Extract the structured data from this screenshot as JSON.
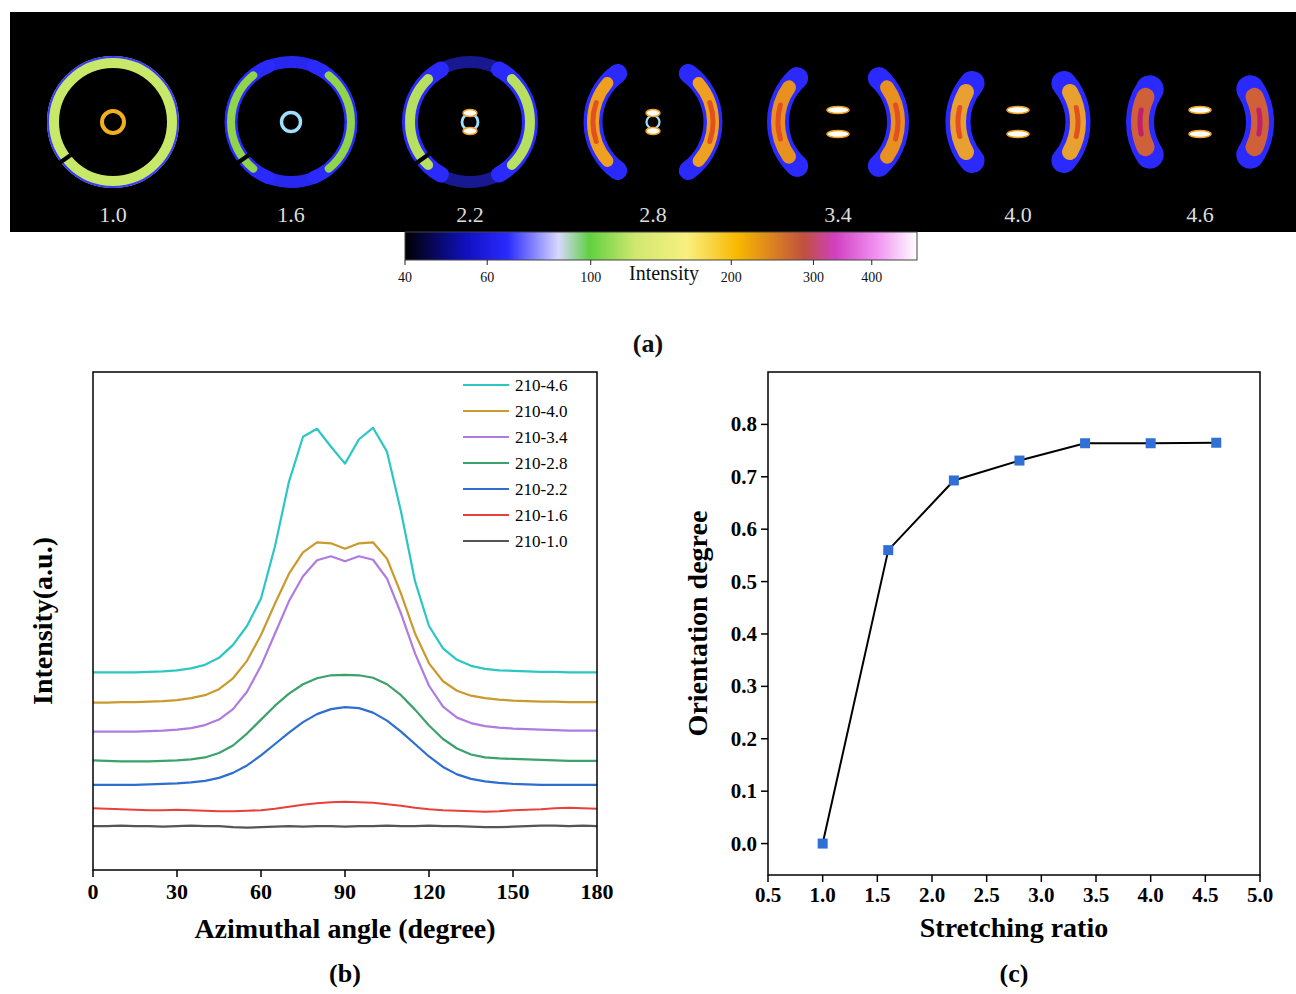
{
  "chart_data": [
    {
      "type": "image",
      "panel": "(a)",
      "images": [
        "1.0",
        "1.6",
        "2.2",
        "2.8",
        "3.4",
        "4.0",
        "4.6"
      ],
      "log": true,
      "colorbar": {
        "label": "Intensity",
        "range": [
          40,
          500
        ],
        "ticks": [
          40,
          60,
          100,
          200,
          300,
          400
        ]
      }
    },
    {
      "type": "line",
      "panel": "(b)",
      "x_label": "Azimuthal angle (degree)",
      "y_label": "Intensity(a.u.)",
      "xlim": [
        0,
        180
      ],
      "xticks": [
        0,
        30,
        60,
        90,
        120,
        150,
        180
      ],
      "ylim": [
        0,
        100
      ],
      "tick_labels": "x",
      "legend": "upper right",
      "x": [
        0,
        5,
        10,
        15,
        20,
        25,
        30,
        35,
        40,
        45,
        50,
        55,
        60,
        65,
        70,
        75,
        80,
        85,
        90,
        95,
        100,
        105,
        110,
        115,
        120,
        125,
        130,
        135,
        140,
        145,
        150,
        155,
        160,
        165,
        170,
        175,
        180
      ],
      "series": [
        {
          "name": "210-4.6",
          "color": "#2cc6c4",
          "values": [
            39.7,
            39.7,
            39.7,
            39.7,
            39.8,
            39.9,
            40.1,
            40.5,
            41.2,
            42.6,
            45.2,
            49.0,
            54.5,
            65.0,
            78.0,
            87.0,
            88.6,
            85.0,
            81.6,
            86.5,
            88.8,
            84.0,
            72.0,
            58.0,
            49.0,
            44.5,
            42.2,
            41.0,
            40.4,
            40.1,
            40.0,
            39.9,
            39.8,
            39.8,
            39.7,
            39.7,
            39.7
          ]
        },
        {
          "name": "210-4.0",
          "color": "#c99a2e",
          "values": [
            33.6,
            33.6,
            33.7,
            33.7,
            33.8,
            33.9,
            34.1,
            34.5,
            35.1,
            36.3,
            38.5,
            42.0,
            47.2,
            53.5,
            59.5,
            63.8,
            65.8,
            65.6,
            64.5,
            65.6,
            65.8,
            62.5,
            55.5,
            47.5,
            41.5,
            37.9,
            36.0,
            35.0,
            34.5,
            34.2,
            34.0,
            33.9,
            33.8,
            33.8,
            33.7,
            33.7,
            33.7
          ]
        },
        {
          "name": "210-3.4",
          "color": "#b07be0",
          "values": [
            27.8,
            27.8,
            27.8,
            27.8,
            27.9,
            28.0,
            28.2,
            28.5,
            29.1,
            30.2,
            32.3,
            35.8,
            41.0,
            47.5,
            54.0,
            59.0,
            62.2,
            63.0,
            62.0,
            63.0,
            62.3,
            58.5,
            51.5,
            43.5,
            37.0,
            32.8,
            30.6,
            29.5,
            28.9,
            28.6,
            28.4,
            28.3,
            28.2,
            28.1,
            28.0,
            28.0,
            28.0
          ]
        },
        {
          "name": "210-2.8",
          "color": "#3aa26a",
          "values": [
            22.0,
            21.9,
            21.8,
            21.8,
            21.8,
            21.9,
            22.0,
            22.2,
            22.6,
            23.5,
            25.0,
            27.4,
            30.2,
            33.0,
            35.4,
            37.3,
            38.5,
            39.1,
            39.2,
            39.1,
            38.6,
            37.3,
            35.1,
            32.2,
            29.0,
            26.3,
            24.4,
            23.2,
            22.6,
            22.4,
            22.3,
            22.2,
            22.1,
            22.0,
            21.9,
            21.9,
            21.9
          ]
        },
        {
          "name": "210-2.2",
          "color": "#2c6fd1",
          "values": [
            17.1,
            17.1,
            17.1,
            17.1,
            17.2,
            17.3,
            17.4,
            17.6,
            17.9,
            18.5,
            19.5,
            21.0,
            23.0,
            25.3,
            27.6,
            29.7,
            31.3,
            32.3,
            32.7,
            32.5,
            31.6,
            30.0,
            27.8,
            25.3,
            22.8,
            20.7,
            19.2,
            18.3,
            17.8,
            17.5,
            17.3,
            17.2,
            17.1,
            17.1,
            17.1,
            17.1,
            17.1
          ]
        },
        {
          "name": "210-1.6",
          "color": "#e8413b",
          "values": [
            12.4,
            12.3,
            12.2,
            12.1,
            12.0,
            12.0,
            12.1,
            12.0,
            11.9,
            11.8,
            11.8,
            11.9,
            12.0,
            12.3,
            12.7,
            13.1,
            13.4,
            13.6,
            13.7,
            13.6,
            13.5,
            13.2,
            12.9,
            12.5,
            12.2,
            12.0,
            11.9,
            11.8,
            11.7,
            11.8,
            12.0,
            12.1,
            12.2,
            12.4,
            12.5,
            12.4,
            12.3
          ]
        },
        {
          "name": "210-1.0",
          "color": "#555555",
          "values": [
            8.8,
            8.8,
            8.9,
            8.8,
            8.8,
            8.7,
            8.8,
            8.9,
            8.8,
            8.8,
            8.6,
            8.5,
            8.6,
            8.7,
            8.8,
            8.7,
            8.8,
            8.8,
            8.7,
            8.8,
            8.8,
            8.9,
            8.8,
            8.8,
            8.9,
            8.8,
            8.8,
            8.7,
            8.6,
            8.6,
            8.7,
            8.8,
            8.9,
            8.9,
            8.8,
            8.9,
            8.8
          ]
        }
      ]
    },
    {
      "type": "line",
      "panel": "(c)",
      "x_label": "Stretching ratio",
      "y_label": "Orientation degree",
      "xlim": [
        0.5,
        5.0
      ],
      "xticks": [
        0.5,
        {
          "value": 1,
          "label": "1.0"
        },
        1.5,
        {
          "value": 2,
          "label": "2.0"
        },
        2.5,
        {
          "value": 3,
          "label": "3.0"
        },
        3.5,
        {
          "value": 4,
          "label": "4.0"
        },
        4.5,
        {
          "value": 5,
          "label": "5.0"
        }
      ],
      "ylim": [
        -0.06,
        0.9
      ],
      "yticks": [
        {
          "value": 0,
          "label": "0.0"
        },
        0.1,
        0.2,
        0.3,
        0.4,
        0.5,
        0.6,
        0.7,
        0.8
      ],
      "x": [
        1.0,
        1.6,
        2.2,
        2.8,
        3.4,
        4.0,
        4.6
      ],
      "values": [
        0.0,
        0.56,
        0.693,
        0.731,
        0.764,
        0.764,
        0.765
      ],
      "color": "#2f6fd6",
      "marker": "square",
      "line_style": "solid"
    }
  ]
}
